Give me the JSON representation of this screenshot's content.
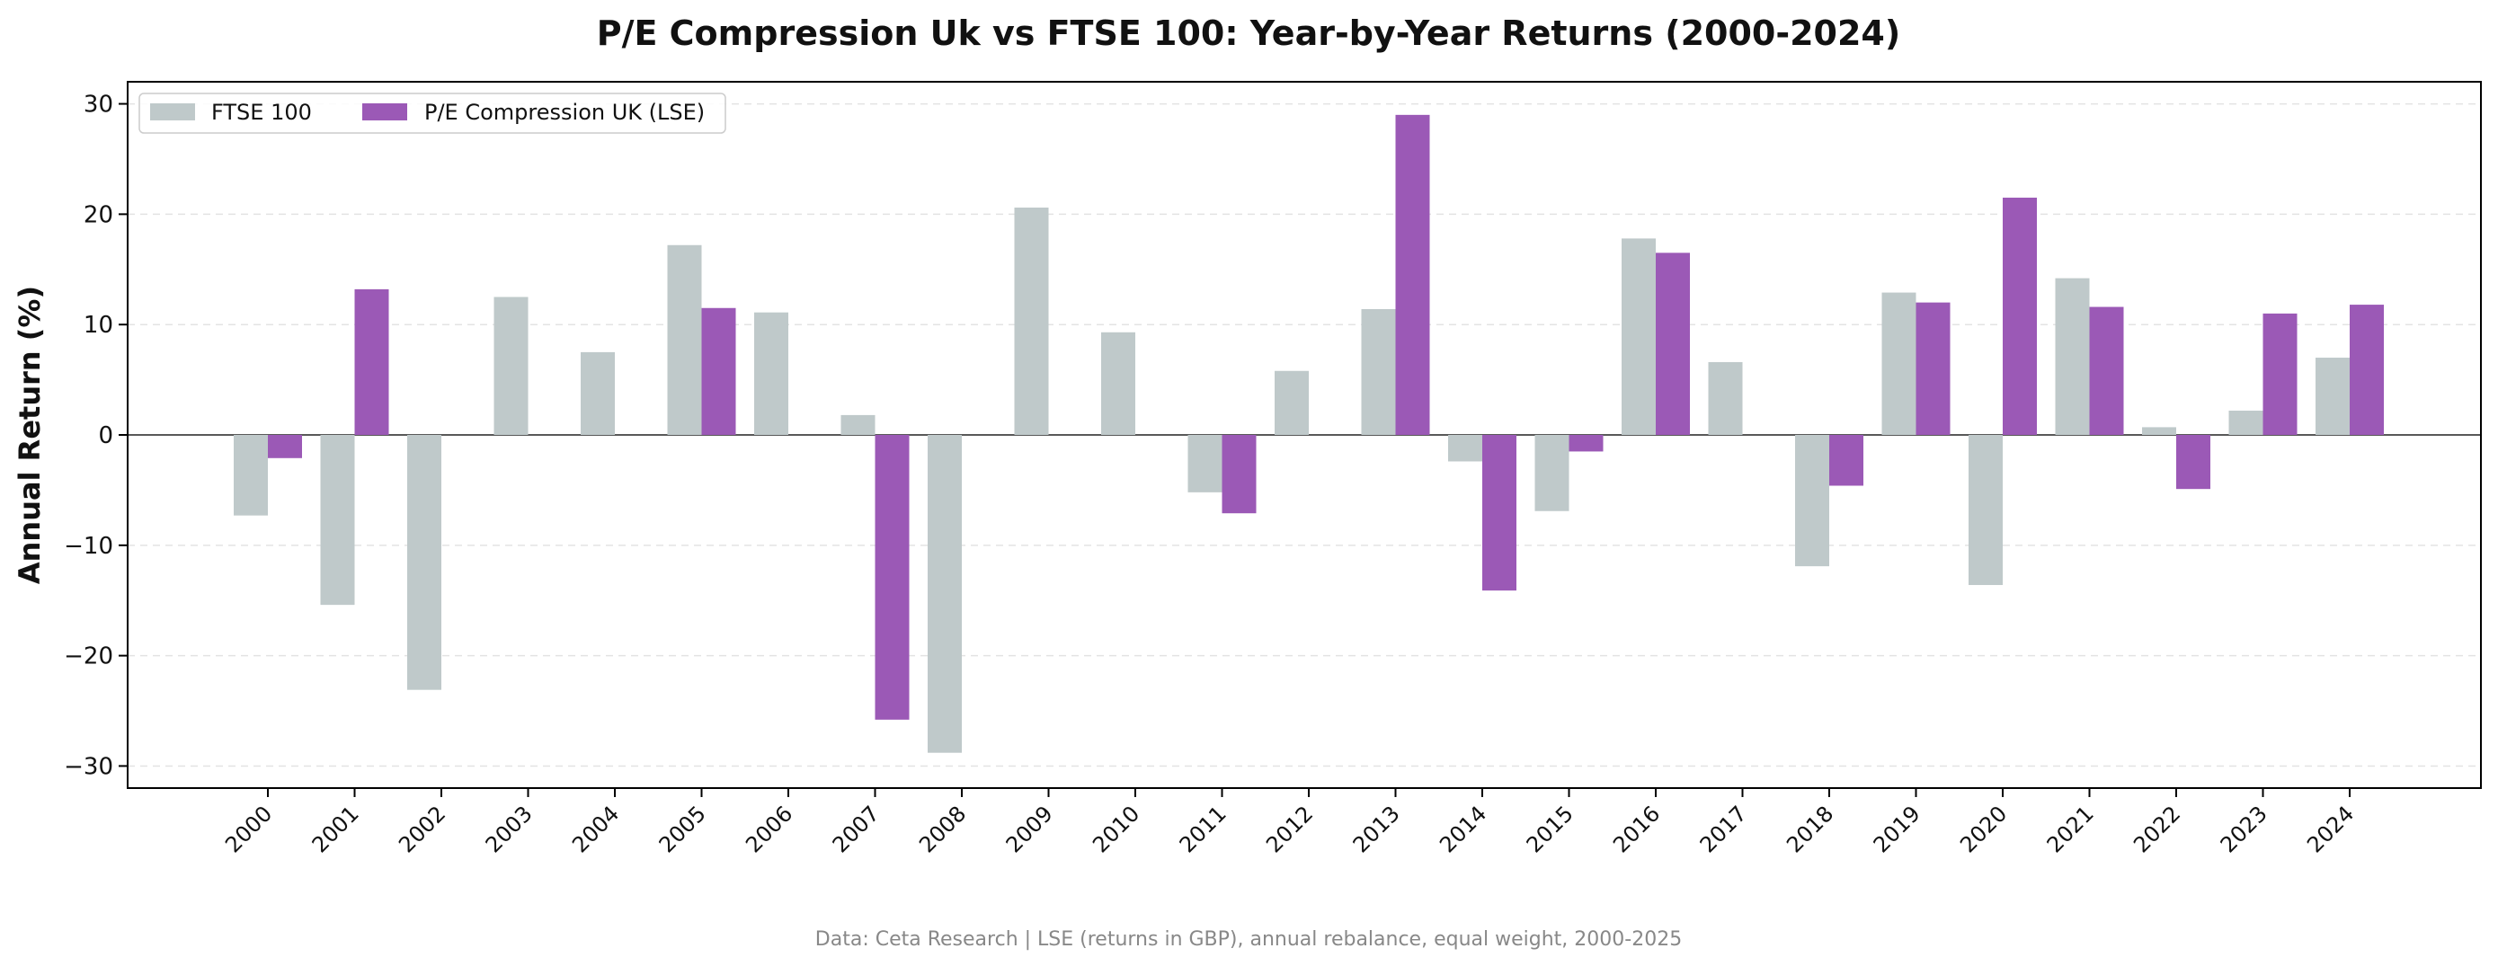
{
  "chart_data": {
    "type": "bar",
    "title": "P/E Compression Uk vs FTSE 100: Year-by-Year Returns (2000-2024)",
    "xlabel": "",
    "ylabel": "Annual Return (%)",
    "ylim": [
      -32,
      32
    ],
    "yticks": [
      -30,
      -20,
      -10,
      0,
      10,
      20,
      30
    ],
    "ytick_labels": [
      "−30",
      "−20",
      "−10",
      "0",
      "10",
      "20",
      "30"
    ],
    "grid": "horizontal dashed",
    "legend_placement": "top-left",
    "categories": [
      "2000",
      "2001",
      "2002",
      "2003",
      "2004",
      "2005",
      "2006",
      "2007",
      "2008",
      "2009",
      "2010",
      "2011",
      "2012",
      "2013",
      "2014",
      "2015",
      "2016",
      "2017",
      "2018",
      "2019",
      "2020",
      "2021",
      "2022",
      "2023",
      "2024"
    ],
    "series": [
      {
        "name": "FTSE 100",
        "color": "#bfc9ca",
        "values": [
          -7.3,
          -15.4,
          -23.1,
          12.5,
          7.5,
          17.2,
          11.1,
          1.8,
          -28.8,
          20.6,
          9.3,
          -5.2,
          5.8,
          11.4,
          -2.4,
          -6.9,
          17.8,
          6.6,
          -11.9,
          12.9,
          -13.6,
          14.2,
          0.7,
          2.2,
          7.0
        ]
      },
      {
        "name": "P/E Compression UK (LSE)",
        "color": "#9b59b6",
        "values": [
          -2.1,
          13.2,
          null,
          null,
          null,
          11.5,
          null,
          -25.8,
          null,
          null,
          null,
          -7.1,
          null,
          29.0,
          -14.1,
          -1.5,
          16.5,
          null,
          -4.6,
          12.0,
          21.5,
          11.6,
          -4.9,
          11.0,
          11.8
        ]
      }
    ],
    "footnote": "Data: Ceta Research | LSE (returns in GBP), annual rebalance, equal weight, 2000-2025"
  }
}
